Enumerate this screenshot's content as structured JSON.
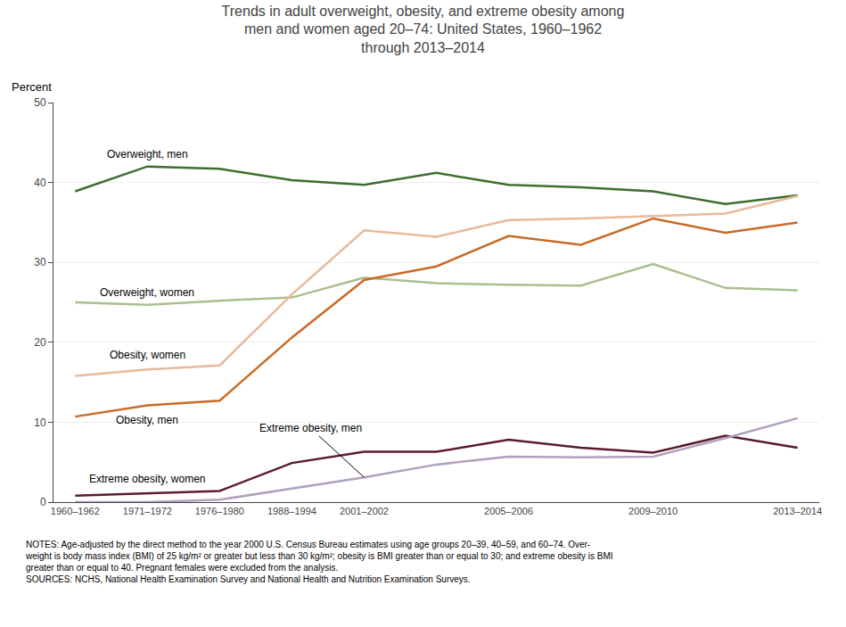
{
  "chart_data": {
    "type": "line",
    "title": "Trends in adult overweight, obesity, and extreme obesity among\nmen and women aged 20–74: United States, 1960–1962\nthrough 2013–2014",
    "ylabel": "Percent",
    "categories": [
      "1960–1962",
      "1971–1972",
      "1976–1980",
      "1988–1994",
      "2001–2002",
      null,
      "2005–2006",
      null,
      "2009–2010",
      null,
      "2013–2014"
    ],
    "series": [
      {
        "name": "Overweight, men",
        "color": "#3d6e2e",
        "values": [
          38.9,
          42.0,
          41.7,
          40.3,
          39.7,
          41.2,
          39.7,
          39.4,
          38.9,
          37.3,
          38.4
        ]
      },
      {
        "name": "Overweight, women",
        "color": "#aabf8d",
        "values": [
          25.0,
          24.7,
          25.2,
          25.6,
          28.1,
          27.4,
          27.2,
          27.1,
          29.8,
          26.8,
          26.5
        ]
      },
      {
        "name": "Obesity, women",
        "color": "#e8b99a",
        "values": [
          15.8,
          16.6,
          17.1,
          26.0,
          34.0,
          33.2,
          35.3,
          35.5,
          35.8,
          36.1,
          38.3
        ]
      },
      {
        "name": "Obesity, men",
        "color": "#c96a26",
        "values": [
          10.7,
          12.1,
          12.7,
          20.6,
          27.8,
          29.5,
          33.3,
          32.2,
          35.5,
          33.7,
          35.0
        ]
      },
      {
        "name": "Extreme obesity, women",
        "color": "#5c1a2e",
        "values": [
          0.8,
          1.1,
          1.4,
          4.9,
          6.3,
          6.3,
          7.8,
          6.8,
          6.2,
          8.3,
          6.8
        ]
      },
      {
        "name": "Extreme obesity, men",
        "color": "#b0a0c0",
        "values": [
          0.0,
          0.0,
          0.3,
          1.7,
          3.1,
          4.7,
          5.7,
          5.6,
          5.7,
          8.0,
          10.5
        ]
      }
    ],
    "ylim": [
      0,
      50
    ],
    "yticks": [
      0,
      10,
      20,
      30,
      40,
      50
    ],
    "grid": true,
    "notes": [
      "NOTES: Age-adjusted by the direct method to the year 2000 U.S. Census Bureau estimates using age groups 20–39, 40–59, and 60–74. Over-",
      "weight is body mass index (BMI) of 25 kg/m² or greater but less than 30 kg/m²; obesity is BMI greater than or equal to 30; and extreme obesity is BMI",
      "greater than or equal to 40. Pregnant females were excluded from the analysis.",
      "SOURCES: NCHS, National Health Examination Survey and National Health and Nutrition Examination Surveys."
    ]
  }
}
